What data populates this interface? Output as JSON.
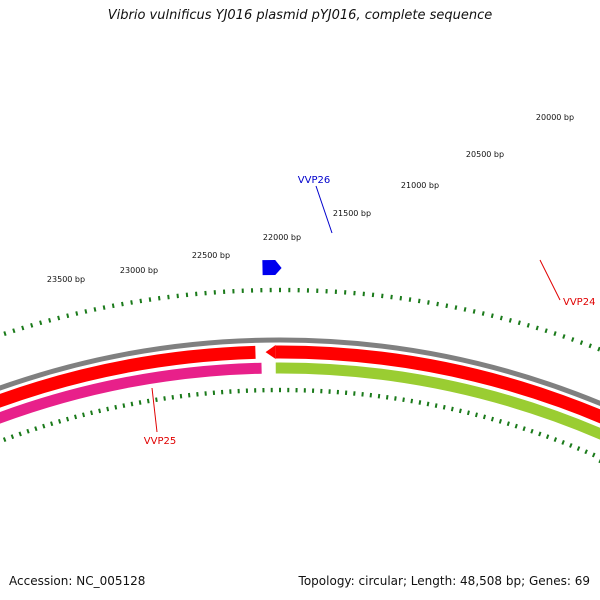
{
  "title": "Vibrio vulnificus YJ016 plasmid pYJ016, complete sequence",
  "accession_text": "Accession: NC_005128",
  "summary_text": "Topology: circular; Length: 48,508 bp; Genes: 69",
  "sequence_length": 48508,
  "ruler": {
    "labels": [
      "20000 bp",
      "20500 bp",
      "21000 bp",
      "21500 bp",
      "22000 bp",
      "22500 bp",
      "23000 bp",
      "23500 bp"
    ],
    "tick_color": "#1a7a1a"
  },
  "genes": [
    {
      "name": "VVP24",
      "label_color": "#e00000",
      "feature_color": "#9acd32"
    },
    {
      "name": "VVP25",
      "label_color": "#e00000",
      "feature_color": "#e8208a"
    },
    {
      "name": "VVP26",
      "label_color": "#0000cc",
      "feature_color": "#0000ee"
    }
  ],
  "colors": {
    "backbone": "#808080",
    "cds_forward": "#ff0000",
    "vvp24": "#9acd32",
    "vvp25": "#e8208a",
    "vvp26": "#0000ee"
  }
}
